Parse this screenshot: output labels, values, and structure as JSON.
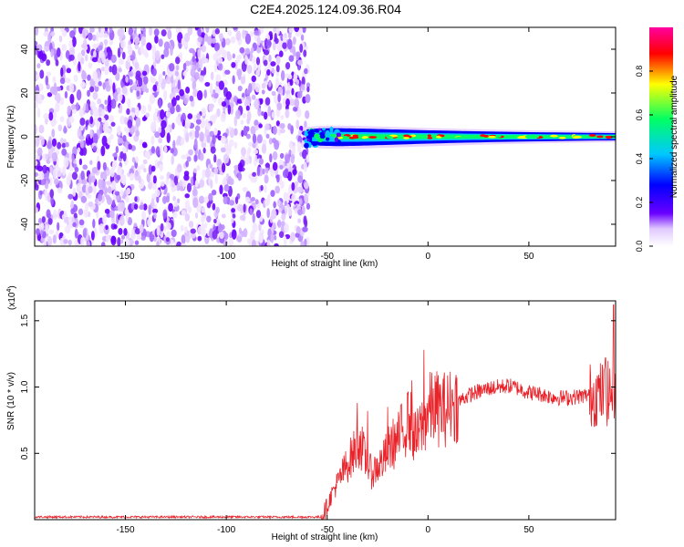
{
  "page_title": "C2E4.2025.124.09.36.R04",
  "chart_data": [
    {
      "type": "heatmap",
      "title": "C2E4.2025.124.09.36.R04",
      "xlabel": "Height of straight line (km)",
      "ylabel": "Frequency (Hz)",
      "xlim": [
        -195,
        93
      ],
      "ylim": [
        -50,
        50
      ],
      "xticks": [
        -150,
        -100,
        -50,
        0,
        50
      ],
      "xtick_labels": [
        "-150",
        "-100",
        "-50",
        "0",
        "50"
      ],
      "yticks": [
        -40,
        -20,
        0,
        20,
        40
      ],
      "ytick_labels": [
        "-40",
        "-20",
        "0",
        "20",
        "40"
      ],
      "noise_region_x": [
        -195,
        -62
      ],
      "signal_band_frequency_hz": 0,
      "signal_x_range": [
        -62,
        93
      ],
      "colorbar": {
        "label": "Normalized spectral amplitude",
        "range": [
          0,
          1
        ],
        "ticks": [
          0.0,
          0.2,
          0.4,
          0.6,
          0.8
        ],
        "tick_labels": [
          "0.0",
          "0.2",
          "0.4",
          "0.6",
          "0.8"
        ],
        "colormap": [
          "#ffffff",
          "#6a00ff",
          "#0000ff",
          "#00c8ff",
          "#00ff64",
          "#ffff00",
          "#ff0000",
          "#ff00a0"
        ]
      },
      "grid": false
    },
    {
      "type": "line",
      "xlabel": "Height of straight line (km)",
      "ylabel": "SNR (10 * v/v)",
      "y_scale_label": "(x10",
      "y_scale_exponent": "4",
      "y_scale_close": ")",
      "xlim": [
        -195,
        93
      ],
      "ylim": [
        0,
        1.65
      ],
      "xticks": [
        -150,
        -100,
        -50,
        0,
        50
      ],
      "xtick_labels": [
        "-150",
        "-100",
        "-50",
        "0",
        "50"
      ],
      "yticks": [
        0.5,
        1.0,
        1.5
      ],
      "ytick_labels": [
        "0.5",
        "1.0",
        "1.5"
      ],
      "series": [
        {
          "color": "#e8232a",
          "x": [
            -195,
            -150,
            -100,
            -60,
            -53,
            -50,
            -47,
            -44,
            -40,
            -37,
            -34,
            -31,
            -28,
            -25,
            -22,
            -19,
            -15,
            -12,
            -9,
            -6,
            -3,
            0,
            3,
            6,
            10,
            14,
            18,
            22,
            26,
            30,
            35,
            40,
            45,
            50,
            55,
            60,
            65,
            70,
            75,
            80,
            85,
            90,
            93
          ],
          "y": [
            0.02,
            0.02,
            0.02,
            0.02,
            0.02,
            0.1,
            0.22,
            0.3,
            0.42,
            0.5,
            0.6,
            0.45,
            0.35,
            0.4,
            0.45,
            0.55,
            0.6,
            0.7,
            0.75,
            0.6,
            0.7,
            0.82,
            0.85,
            0.83,
            0.84,
            0.88,
            0.92,
            0.95,
            0.97,
            0.99,
            1.0,
            1.01,
            0.99,
            0.96,
            0.95,
            0.93,
            0.92,
            0.92,
            0.93,
            0.94,
            0.95,
            0.95,
            0.97
          ],
          "peaks": [
            {
              "x": -35,
              "y": 0.88
            },
            {
              "x": -30,
              "y": 0.82
            },
            {
              "x": -20,
              "y": 0.85
            },
            {
              "x": -10,
              "y": 0.95
            },
            {
              "x": -8,
              "y": 1.05
            },
            {
              "x": -2,
              "y": 1.28
            },
            {
              "x": 12,
              "y": 0.98
            },
            {
              "x": 88,
              "y": 1.22
            },
            {
              "x": 92,
              "y": 1.62
            }
          ]
        }
      ],
      "grid": false
    }
  ]
}
